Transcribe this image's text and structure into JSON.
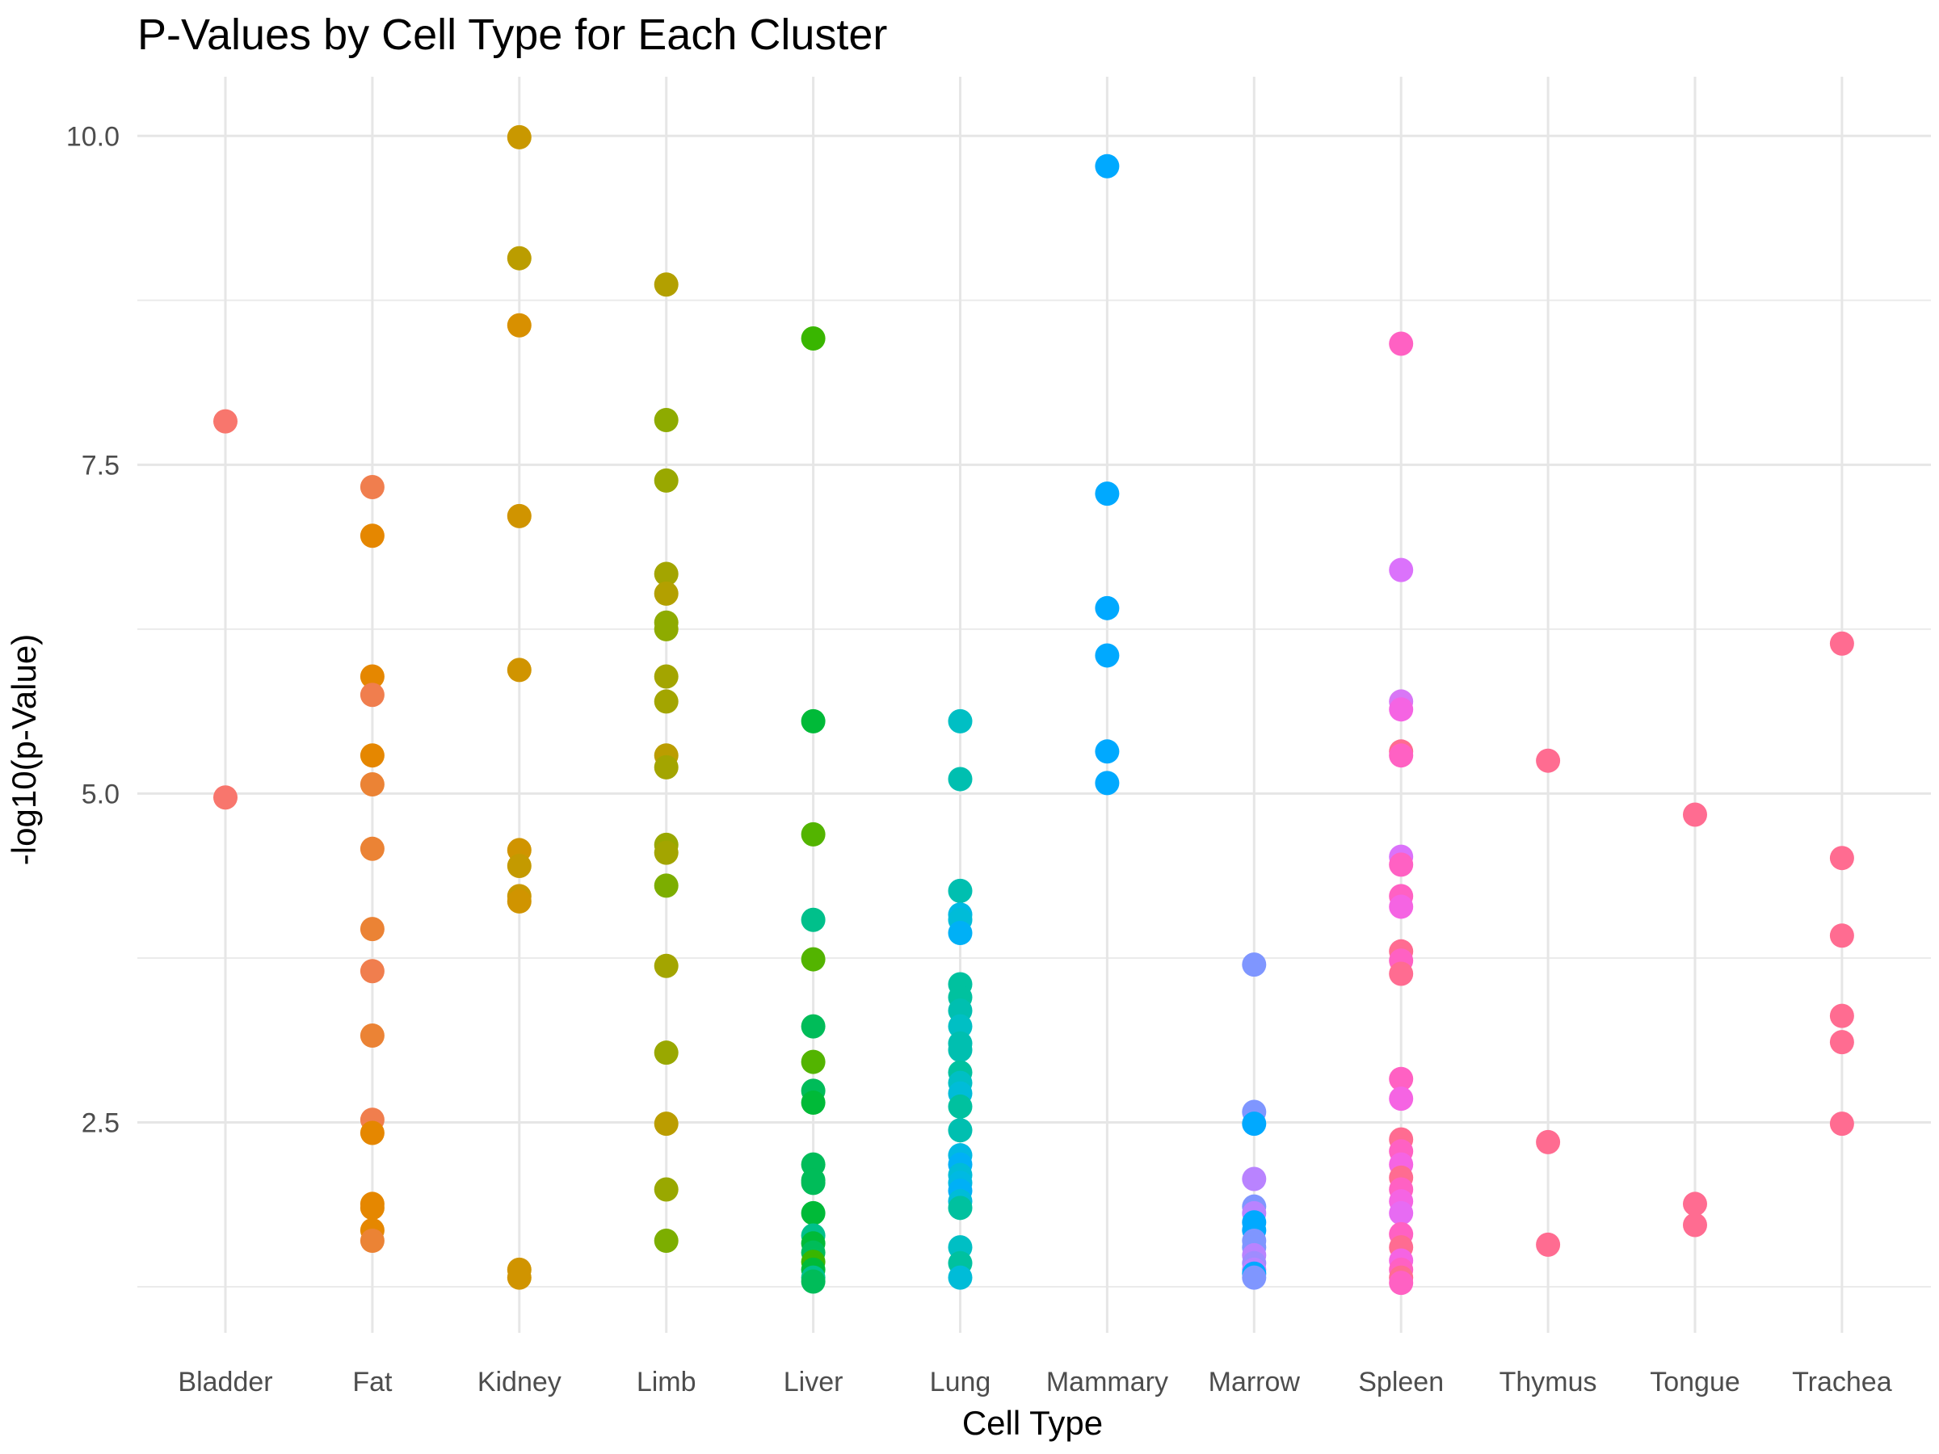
{
  "chart_data": {
    "type": "scatter",
    "title": "P-Values by Cell Type for Each Cluster",
    "xlabel": "Cell Type",
    "ylabel": "-log10(p-Value)",
    "categories": [
      "Bladder",
      "Fat",
      "Kidney",
      "Limb",
      "Liver",
      "Lung",
      "Mammary",
      "Marrow",
      "Spleen",
      "Thymus",
      "Tongue",
      "Trachea"
    ],
    "ylim": [
      0.9,
      10.45
    ],
    "y_ticks": [
      "2.5",
      "5.0",
      "7.5",
      "10.0"
    ],
    "grid": true,
    "legend": "none",
    "points": [
      {
        "category": "Bladder",
        "y": 7.83,
        "color": "#F8766D"
      },
      {
        "category": "Bladder",
        "y": 4.97,
        "color": "#F8766D"
      },
      {
        "category": "Fat",
        "y": 7.33,
        "color": "#F07E4E"
      },
      {
        "category": "Fat",
        "y": 6.96,
        "color": "#E58700"
      },
      {
        "category": "Fat",
        "y": 5.89,
        "color": "#E58700"
      },
      {
        "category": "Fat",
        "y": 5.75,
        "color": "#F07E4E"
      },
      {
        "category": "Fat",
        "y": 5.29,
        "color": "#E58700"
      },
      {
        "category": "Fat",
        "y": 5.07,
        "color": "#EB8335"
      },
      {
        "category": "Fat",
        "y": 4.58,
        "color": "#EB8335"
      },
      {
        "category": "Fat",
        "y": 3.97,
        "color": "#EB8335"
      },
      {
        "category": "Fat",
        "y": 3.65,
        "color": "#F07E4E"
      },
      {
        "category": "Fat",
        "y": 3.16,
        "color": "#EB8335"
      },
      {
        "category": "Fat",
        "y": 2.52,
        "color": "#F07E4E"
      },
      {
        "category": "Fat",
        "y": 2.42,
        "color": "#E58700"
      },
      {
        "category": "Fat",
        "y": 1.88,
        "color": "#E58700"
      },
      {
        "category": "Fat",
        "y": 1.85,
        "color": "#E58700"
      },
      {
        "category": "Fat",
        "y": 1.68,
        "color": "#E58700"
      },
      {
        "category": "Fat",
        "y": 1.6,
        "color": "#EB8335"
      },
      {
        "category": "Kidney",
        "y": 9.99,
        "color": "#C99800"
      },
      {
        "category": "Kidney",
        "y": 9.07,
        "color": "#BB9D00"
      },
      {
        "category": "Kidney",
        "y": 8.56,
        "color": "#D89000"
      },
      {
        "category": "Kidney",
        "y": 7.11,
        "color": "#D09400"
      },
      {
        "category": "Kidney",
        "y": 5.94,
        "color": "#D09400"
      },
      {
        "category": "Kidney",
        "y": 4.57,
        "color": "#D09400"
      },
      {
        "category": "Kidney",
        "y": 4.45,
        "color": "#C49A00"
      },
      {
        "category": "Kidney",
        "y": 4.22,
        "color": "#C99800"
      },
      {
        "category": "Kidney",
        "y": 4.18,
        "color": "#D09400"
      },
      {
        "category": "Kidney",
        "y": 1.38,
        "color": "#D09400"
      },
      {
        "category": "Kidney",
        "y": 1.32,
        "color": "#D09400"
      },
      {
        "category": "Limb",
        "y": 8.87,
        "color": "#B3A000"
      },
      {
        "category": "Limb",
        "y": 7.84,
        "color": "#8EAB00"
      },
      {
        "category": "Limb",
        "y": 7.38,
        "color": "#99A800"
      },
      {
        "category": "Limb",
        "y": 6.67,
        "color": "#A3A500"
      },
      {
        "category": "Limb",
        "y": 6.52,
        "color": "#B3A000"
      },
      {
        "category": "Limb",
        "y": 6.3,
        "color": "#8EAB00"
      },
      {
        "category": "Limb",
        "y": 6.25,
        "color": "#8EAB00"
      },
      {
        "category": "Limb",
        "y": 5.89,
        "color": "#A3A500"
      },
      {
        "category": "Limb",
        "y": 5.7,
        "color": "#A3A500"
      },
      {
        "category": "Limb",
        "y": 5.29,
        "color": "#BB9D00"
      },
      {
        "category": "Limb",
        "y": 5.2,
        "color": "#A3A500"
      },
      {
        "category": "Limb",
        "y": 4.61,
        "color": "#99A800"
      },
      {
        "category": "Limb",
        "y": 4.55,
        "color": "#A3A500"
      },
      {
        "category": "Limb",
        "y": 4.3,
        "color": "#7CAE00"
      },
      {
        "category": "Limb",
        "y": 3.69,
        "color": "#A3A500"
      },
      {
        "category": "Limb",
        "y": 3.03,
        "color": "#99A800"
      },
      {
        "category": "Limb",
        "y": 2.49,
        "color": "#BB9D00"
      },
      {
        "category": "Limb",
        "y": 1.99,
        "color": "#99A800"
      },
      {
        "category": "Limb",
        "y": 1.6,
        "color": "#7CAE00"
      },
      {
        "category": "Liver",
        "y": 8.46,
        "color": "#39B600"
      },
      {
        "category": "Liver",
        "y": 5.55,
        "color": "#00BA38"
      },
      {
        "category": "Liver",
        "y": 4.69,
        "color": "#53B400"
      },
      {
        "category": "Liver",
        "y": 4.04,
        "color": "#00C08B"
      },
      {
        "category": "Liver",
        "y": 3.74,
        "color": "#53B400"
      },
      {
        "category": "Liver",
        "y": 3.23,
        "color": "#00BC59"
      },
      {
        "category": "Liver",
        "y": 2.96,
        "color": "#53B400"
      },
      {
        "category": "Liver",
        "y": 2.74,
        "color": "#00BC59"
      },
      {
        "category": "Liver",
        "y": 2.65,
        "color": "#00BA38"
      },
      {
        "category": "Liver",
        "y": 2.18,
        "color": "#00BC59"
      },
      {
        "category": "Liver",
        "y": 2.06,
        "color": "#00BC59"
      },
      {
        "category": "Liver",
        "y": 2.04,
        "color": "#00BC59"
      },
      {
        "category": "Liver",
        "y": 1.81,
        "color": "#00BA38"
      },
      {
        "category": "Liver",
        "y": 1.64,
        "color": "#00C08B"
      },
      {
        "category": "Liver",
        "y": 1.58,
        "color": "#00BA38"
      },
      {
        "category": "Liver",
        "y": 1.51,
        "color": "#00BC59"
      },
      {
        "category": "Liver",
        "y": 1.44,
        "color": "#39B600"
      },
      {
        "category": "Liver",
        "y": 1.38,
        "color": "#00BA38"
      },
      {
        "category": "Liver",
        "y": 1.32,
        "color": "#00C08B"
      },
      {
        "category": "Liver",
        "y": 1.29,
        "color": "#00BC59"
      },
      {
        "category": "Lung",
        "y": 5.55,
        "color": "#00BFC4"
      },
      {
        "category": "Lung",
        "y": 5.11,
        "color": "#00BFB0"
      },
      {
        "category": "Lung",
        "y": 4.26,
        "color": "#00BFB0"
      },
      {
        "category": "Lung",
        "y": 4.08,
        "color": "#00B9E3"
      },
      {
        "category": "Lung",
        "y": 4.04,
        "color": "#00BCD8"
      },
      {
        "category": "Lung",
        "y": 3.94,
        "color": "#00B0F6"
      },
      {
        "category": "Lung",
        "y": 3.55,
        "color": "#00C19F"
      },
      {
        "category": "Lung",
        "y": 3.45,
        "color": "#00C19F"
      },
      {
        "category": "Lung",
        "y": 3.35,
        "color": "#00BFB0"
      },
      {
        "category": "Lung",
        "y": 3.23,
        "color": "#00BFC4"
      },
      {
        "category": "Lung",
        "y": 3.1,
        "color": "#00BFB0"
      },
      {
        "category": "Lung",
        "y": 3.05,
        "color": "#00BFB0"
      },
      {
        "category": "Lung",
        "y": 2.88,
        "color": "#00C19F"
      },
      {
        "category": "Lung",
        "y": 2.8,
        "color": "#00BFC4"
      },
      {
        "category": "Lung",
        "y": 2.72,
        "color": "#00BCD8"
      },
      {
        "category": "Lung",
        "y": 2.62,
        "color": "#00C19F"
      },
      {
        "category": "Lung",
        "y": 2.44,
        "color": "#00BFB0"
      },
      {
        "category": "Lung",
        "y": 2.25,
        "color": "#00B9E3"
      },
      {
        "category": "Lung",
        "y": 2.18,
        "color": "#00B0F6"
      },
      {
        "category": "Lung",
        "y": 2.1,
        "color": "#00BCD8"
      },
      {
        "category": "Lung",
        "y": 2.04,
        "color": "#00B9E3"
      },
      {
        "category": "Lung",
        "y": 1.98,
        "color": "#00B0F6"
      },
      {
        "category": "Lung",
        "y": 1.9,
        "color": "#00BCD8"
      },
      {
        "category": "Lung",
        "y": 1.85,
        "color": "#00C19F"
      },
      {
        "category": "Lung",
        "y": 1.55,
        "color": "#00BFC4"
      },
      {
        "category": "Lung",
        "y": 1.43,
        "color": "#00C19F"
      },
      {
        "category": "Lung",
        "y": 1.32,
        "color": "#00BCD8"
      },
      {
        "category": "Mammary",
        "y": 9.77,
        "color": "#00A9FF"
      },
      {
        "category": "Mammary",
        "y": 7.28,
        "color": "#00A9FF"
      },
      {
        "category": "Mammary",
        "y": 6.41,
        "color": "#00A9FF"
      },
      {
        "category": "Mammary",
        "y": 6.05,
        "color": "#00A9FF"
      },
      {
        "category": "Mammary",
        "y": 5.32,
        "color": "#00A9FF"
      },
      {
        "category": "Mammary",
        "y": 5.08,
        "color": "#00A9FF"
      },
      {
        "category": "Marrow",
        "y": 3.7,
        "color": "#7F96FF"
      },
      {
        "category": "Marrow",
        "y": 2.58,
        "color": "#7F96FF"
      },
      {
        "category": "Marrow",
        "y": 2.49,
        "color": "#00A9FF"
      },
      {
        "category": "Marrow",
        "y": 2.07,
        "color": "#B983FF"
      },
      {
        "category": "Marrow",
        "y": 1.86,
        "color": "#7F96FF"
      },
      {
        "category": "Marrow",
        "y": 1.81,
        "color": "#B983FF"
      },
      {
        "category": "Marrow",
        "y": 1.74,
        "color": "#00A9FF"
      },
      {
        "category": "Marrow",
        "y": 1.68,
        "color": "#00A9FF"
      },
      {
        "category": "Marrow",
        "y": 1.6,
        "color": "#7F96FF"
      },
      {
        "category": "Marrow",
        "y": 1.55,
        "color": "#7F96FF"
      },
      {
        "category": "Marrow",
        "y": 1.49,
        "color": "#B983FF"
      },
      {
        "category": "Marrow",
        "y": 1.43,
        "color": "#9F8CFF"
      },
      {
        "category": "Marrow",
        "y": 1.38,
        "color": "#B983FF"
      },
      {
        "category": "Marrow",
        "y": 1.35,
        "color": "#00A9FF"
      },
      {
        "category": "Marrow",
        "y": 1.32,
        "color": "#7F96FF"
      },
      {
        "category": "Spleen",
        "y": 8.42,
        "color": "#FF61C3"
      },
      {
        "category": "Spleen",
        "y": 6.7,
        "color": "#DB72FB"
      },
      {
        "category": "Spleen",
        "y": 5.7,
        "color": "#D877F6"
      },
      {
        "category": "Spleen",
        "y": 5.64,
        "color": "#F564E3"
      },
      {
        "category": "Spleen",
        "y": 5.32,
        "color": "#FF6C91"
      },
      {
        "category": "Spleen",
        "y": 5.29,
        "color": "#FF61C3"
      },
      {
        "category": "Spleen",
        "y": 4.52,
        "color": "#DB72FB"
      },
      {
        "category": "Spleen",
        "y": 4.46,
        "color": "#FF61C3"
      },
      {
        "category": "Spleen",
        "y": 4.22,
        "color": "#FF61C3"
      },
      {
        "category": "Spleen",
        "y": 4.14,
        "color": "#F564E3"
      },
      {
        "category": "Spleen",
        "y": 3.8,
        "color": "#FF6C91"
      },
      {
        "category": "Spleen",
        "y": 3.73,
        "color": "#FF61C3"
      },
      {
        "category": "Spleen",
        "y": 3.63,
        "color": "#FF6C91"
      },
      {
        "category": "Spleen",
        "y": 2.83,
        "color": "#FF61C3"
      },
      {
        "category": "Spleen",
        "y": 2.68,
        "color": "#F564E3"
      },
      {
        "category": "Spleen",
        "y": 2.37,
        "color": "#FF6C91"
      },
      {
        "category": "Spleen",
        "y": 2.28,
        "color": "#FF61C3"
      },
      {
        "category": "Spleen",
        "y": 2.18,
        "color": "#F564E3"
      },
      {
        "category": "Spleen",
        "y": 2.08,
        "color": "#FF6C91"
      },
      {
        "category": "Spleen",
        "y": 1.99,
        "color": "#FF61C3"
      },
      {
        "category": "Spleen",
        "y": 1.9,
        "color": "#F564E3"
      },
      {
        "category": "Spleen",
        "y": 1.81,
        "color": "#E76BF3"
      },
      {
        "category": "Spleen",
        "y": 1.65,
        "color": "#FF61C3"
      },
      {
        "category": "Spleen",
        "y": 1.55,
        "color": "#FF6C91"
      },
      {
        "category": "Spleen",
        "y": 1.45,
        "color": "#F564E3"
      },
      {
        "category": "Spleen",
        "y": 1.38,
        "color": "#FF61C3"
      },
      {
        "category": "Spleen",
        "y": 1.32,
        "color": "#FF6C91"
      },
      {
        "category": "Spleen",
        "y": 1.28,
        "color": "#FF61C3"
      },
      {
        "category": "Thymus",
        "y": 5.25,
        "color": "#FF6C91"
      },
      {
        "category": "Thymus",
        "y": 2.35,
        "color": "#FF6C91"
      },
      {
        "category": "Thymus",
        "y": 1.57,
        "color": "#FF6C91"
      },
      {
        "category": "Tongue",
        "y": 4.84,
        "color": "#FF6C91"
      },
      {
        "category": "Tongue",
        "y": 1.88,
        "color": "#FF6C91"
      },
      {
        "category": "Tongue",
        "y": 1.72,
        "color": "#FF6C91"
      },
      {
        "category": "Trachea",
        "y": 6.14,
        "color": "#FF6C91"
      },
      {
        "category": "Trachea",
        "y": 4.51,
        "color": "#FF6C91"
      },
      {
        "category": "Trachea",
        "y": 3.92,
        "color": "#FF6C91"
      },
      {
        "category": "Trachea",
        "y": 3.31,
        "color": "#FF6C91"
      },
      {
        "category": "Trachea",
        "y": 3.11,
        "color": "#FF6C91"
      },
      {
        "category": "Trachea",
        "y": 2.49,
        "color": "#FF6C91"
      }
    ]
  }
}
